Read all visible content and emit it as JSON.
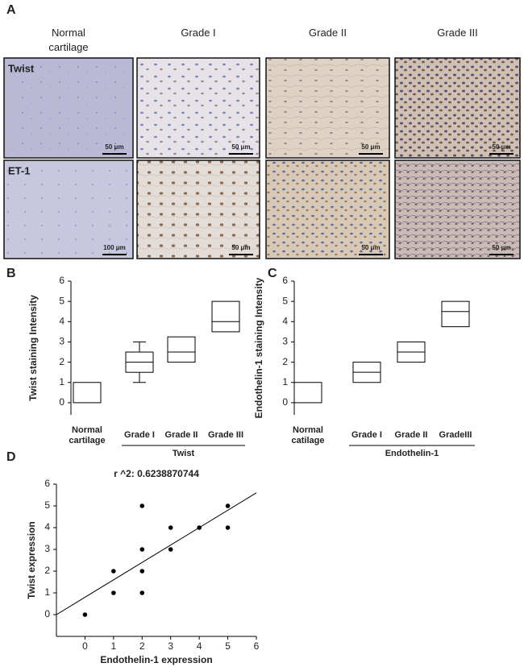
{
  "panel_a": {
    "label": "A",
    "columns": [
      "Normal cartilage",
      "Grade I",
      "Grade II",
      "Grade III"
    ],
    "row_labels": [
      "Twist",
      "ET-1"
    ],
    "scale_bars": [
      [
        "50 μm",
        "50 μm",
        "50 μm",
        "50 μm"
      ],
      [
        "100 μm",
        "50 μm",
        "50 μm",
        "50 μm"
      ]
    ]
  },
  "chart_data": [
    {
      "type": "box",
      "panel_label": "B",
      "ylabel": "Twist staining Intensity",
      "categories": [
        "Normal cartilage",
        "Grade I",
        "Grade II",
        "Grade III"
      ],
      "group_label": "Twist",
      "stats": {
        "min": [
          null,
          1,
          null,
          null
        ],
        "q1": [
          0,
          1.5,
          2,
          3.5
        ],
        "median": [
          null,
          2,
          2.5,
          4
        ],
        "q3": [
          1,
          2.5,
          3.25,
          5
        ],
        "max": [
          null,
          3,
          null,
          null
        ]
      },
      "ylim": [
        -0.6,
        6
      ],
      "yticks": [
        0,
        1,
        2,
        3,
        4,
        5,
        6
      ]
    },
    {
      "type": "box",
      "panel_label": "C",
      "ylabel": "Endothelin-1 staining Intensity",
      "categories": [
        "Normal catilage",
        "Grade I",
        "Grade II",
        "GradeIII"
      ],
      "group_label": "Endothelin-1",
      "stats": {
        "min": [
          null,
          null,
          null,
          null
        ],
        "q1": [
          0,
          1,
          2,
          3.75
        ],
        "median": [
          null,
          1.5,
          2.5,
          4.5
        ],
        "q3": [
          1,
          2,
          3,
          5
        ],
        "max": [
          null,
          null,
          null,
          null
        ]
      },
      "ylim": [
        -0.6,
        6
      ],
      "yticks": [
        0,
        1,
        2,
        3,
        4,
        5,
        6
      ]
    },
    {
      "type": "scatter",
      "panel_label": "D",
      "title": "r ^2: 0.6238870744",
      "xlabel": "Endothelin-1 expression",
      "ylabel": "Twist expression",
      "x": [
        0,
        1,
        1,
        2,
        2,
        2,
        2,
        3,
        3,
        4,
        5,
        5
      ],
      "y": [
        0,
        1,
        2,
        1,
        2,
        3,
        5,
        3,
        4,
        4,
        4,
        5
      ],
      "fit": {
        "slope": 0.8,
        "intercept": 0.8
      },
      "xlim": [
        -1,
        6
      ],
      "ylim": [
        -1,
        6
      ],
      "xticks": [
        0,
        1,
        2,
        3,
        4,
        5,
        6
      ],
      "yticks": [
        0,
        1,
        2,
        3,
        4,
        5,
        6
      ]
    }
  ]
}
